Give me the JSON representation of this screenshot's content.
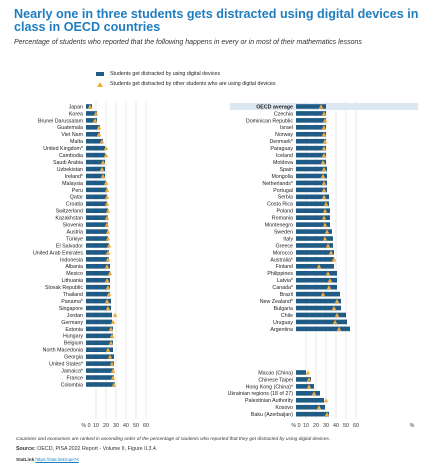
{
  "title": "Nearly one in three students gets distracted using digital devices in class in OECD countries",
  "subtitle": "Percentage of students who reported that the following happens in every or in most of their mathematics lessons",
  "legend": {
    "own": "Students get distracted by using digital devices",
    "others": "Students get distracted by other students who are using digital devices"
  },
  "note": "Countries and economies are ranked in ascending order of the percentage of students who reported that they get distracted by using digital devices.",
  "source_label": "Source:",
  "source_text": "OECD, PISA 2022 Report - Volume II, Figure II.3.4.",
  "statlink_label": "StatLink",
  "statlink_url": "https://stat.link/oqe74",
  "colors": {
    "bar": "#1f5b85",
    "marker": "#f2a93b",
    "title": "#1f7dbf",
    "highlight": "#dce7f2"
  },
  "chart_data": {
    "type": "bar",
    "orientation": "horizontal",
    "xlim": [
      0,
      60
    ],
    "xticks": [
      0,
      10,
      20,
      30,
      40,
      50,
      60
    ],
    "xlabel_unit": "%",
    "grid": true,
    "series": [
      {
        "name": "Students get distracted by using digital devices"
      },
      {
        "name": "Students get distracted by other students who are using digital devices"
      }
    ],
    "panels": [
      {
        "categories": [
          "Japan",
          "Korea",
          "Brunei Darussalam",
          "Guatemala",
          "Viet Nam",
          "Malta",
          "United Kingdom*",
          "Cambodia",
          "Saudi Arabia",
          "Uzbekistan",
          "Ireland*",
          "Malaysia",
          "Peru",
          "Qatar",
          "Croatia",
          "Switzerland",
          "Kazakhstan",
          "Slovenia",
          "Austria",
          "Türkiye",
          "El Salvador",
          "United Arab Emirates",
          "Indonesia",
          "Albania",
          "Mexico",
          "Lithuania",
          "Slovak Republic",
          "Thailand",
          "Panama*",
          "Singapore",
          "Jordan",
          "Germany",
          "Estonia",
          "Hungary",
          "Belgium",
          "North Macedonia",
          "Georgia",
          "United States*",
          "Jamaica*",
          "France",
          "Colombia"
        ],
        "own": [
          6,
          11,
          11,
          14,
          14,
          17,
          19,
          19,
          19,
          19,
          19,
          20,
          21,
          21,
          21,
          22,
          22,
          22,
          22,
          22,
          23,
          23,
          23,
          24,
          24,
          24,
          24,
          24,
          25,
          25,
          26,
          26,
          27,
          27,
          27,
          27,
          28,
          28,
          28,
          28,
          29
        ],
        "others": [
          4,
          10,
          9,
          13,
          13,
          16,
          20,
          20,
          17,
          16,
          17,
          20,
          21,
          21,
          21,
          22,
          21,
          21,
          22,
          22,
          23,
          22,
          22,
          21,
          24,
          21,
          22,
          23,
          21,
          22,
          29,
          27,
          25,
          26,
          25,
          22,
          24,
          26,
          27,
          27,
          28
        ]
      },
      {
        "categories": [
          "OECD average",
          "Czechia",
          "Dominican Republic",
          "Israel",
          "Norway",
          "Denmark*",
          "Paraguay",
          "Iceland",
          "Moldova",
          "Spain",
          "Mongolia",
          "Netherlands*",
          "Portugal",
          "Serbia",
          "Costa Rica",
          "Poland",
          "Romania",
          "Montenegro",
          "Sweden",
          "Italy",
          "Greece",
          "Morocco",
          "Australia*",
          "Finland",
          "Philippines",
          "Latvia*",
          "Canada*",
          "Brazil",
          "New Zealand*",
          "Bulgaria",
          "Chile",
          "Uruguay",
          "Argentina"
        ],
        "own": [
          30,
          30,
          30,
          30,
          30,
          30,
          30,
          30,
          30,
          31,
          31,
          31,
          31,
          33,
          33,
          34,
          34,
          34,
          36,
          37,
          37,
          38,
          38,
          38,
          41,
          41,
          41,
          44,
          45,
          45,
          50,
          51,
          54
        ],
        "others": [
          25,
          28,
          29,
          28,
          28,
          29,
          28,
          28,
          27,
          28,
          27,
          28,
          28,
          28,
          30,
          29,
          28,
          29,
          31,
          29,
          32,
          35,
          38,
          23,
          32,
          34,
          33,
          27,
          41,
          38,
          41,
          39,
          43
        ]
      },
      {
        "categories": [
          "Macao (China)",
          "Chinese Taipei",
          "Hong Kong (China)*",
          "Ukrainian regions (18 of 27)",
          "Palestinian Authority",
          "Kosovo",
          "Baku (Azerbaijan)"
        ],
        "own": [
          10,
          15,
          18,
          24,
          28,
          29,
          33
        ],
        "others": [
          12,
          13,
          13,
          18,
          30,
          23,
          31
        ]
      }
    ]
  }
}
